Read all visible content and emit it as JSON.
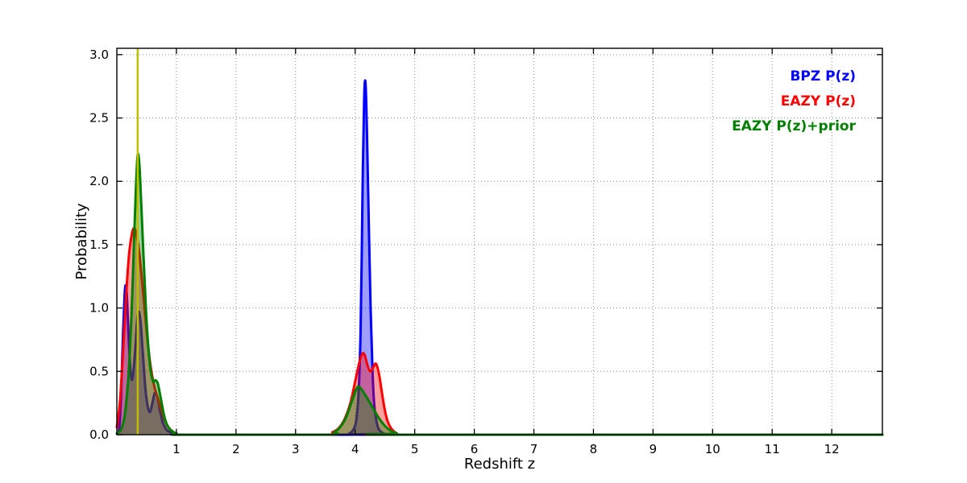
{
  "chart_data": {
    "type": "line",
    "title": "",
    "xlabel": "Redshift z",
    "ylabel": "Probability",
    "xlim": [
      0,
      12.85
    ],
    "ylim": [
      0,
      3.05
    ],
    "xticks": [
      1,
      2,
      3,
      4,
      5,
      6,
      7,
      8,
      9,
      10,
      11,
      12
    ],
    "yticks": [
      0.0,
      0.5,
      1.0,
      1.5,
      2.0,
      2.5,
      3.0
    ],
    "grid": true,
    "legend_position": "top-right",
    "vline": {
      "x": 0.35,
      "color": "#bfbf00"
    },
    "fill_opacity": 0.38,
    "series": [
      {
        "id": "bpz",
        "name": "BPZ P(z)",
        "color": "#0000ff",
        "points": [
          [
            0.0,
            0.01
          ],
          [
            0.04,
            0.05
          ],
          [
            0.07,
            0.3
          ],
          [
            0.1,
            0.75
          ],
          [
            0.13,
            1.1
          ],
          [
            0.15,
            1.18
          ],
          [
            0.17,
            1.08
          ],
          [
            0.2,
            0.75
          ],
          [
            0.23,
            0.5
          ],
          [
            0.26,
            0.44
          ],
          [
            0.3,
            0.62
          ],
          [
            0.34,
            0.9
          ],
          [
            0.37,
            0.97
          ],
          [
            0.4,
            0.88
          ],
          [
            0.44,
            0.62
          ],
          [
            0.48,
            0.36
          ],
          [
            0.52,
            0.22
          ],
          [
            0.56,
            0.18
          ],
          [
            0.6,
            0.26
          ],
          [
            0.64,
            0.33
          ],
          [
            0.68,
            0.3
          ],
          [
            0.72,
            0.2
          ],
          [
            0.77,
            0.1
          ],
          [
            0.83,
            0.04
          ],
          [
            0.9,
            0.02
          ],
          [
            1.0,
            0.01
          ],
          [
            1.15,
            0.0
          ],
          [
            3.8,
            0.0
          ],
          [
            3.9,
            0.01
          ],
          [
            3.97,
            0.04
          ],
          [
            4.02,
            0.12
          ],
          [
            4.06,
            0.35
          ],
          [
            4.09,
            0.8
          ],
          [
            4.11,
            1.4
          ],
          [
            4.13,
            2.1
          ],
          [
            4.15,
            2.62
          ],
          [
            4.165,
            2.79
          ],
          [
            4.18,
            2.72
          ],
          [
            4.2,
            2.35
          ],
          [
            4.23,
            1.65
          ],
          [
            4.26,
            1.0
          ],
          [
            4.29,
            0.52
          ],
          [
            4.32,
            0.24
          ],
          [
            4.36,
            0.1
          ],
          [
            4.4,
            0.04
          ],
          [
            4.48,
            0.01
          ],
          [
            4.6,
            0.0
          ],
          [
            12.85,
            0.0
          ]
        ]
      },
      {
        "id": "eazy",
        "name": "EAZY P(z)",
        "color": "#ff0000",
        "points": [
          [
            0.0,
            0.06
          ],
          [
            0.05,
            0.25
          ],
          [
            0.1,
            0.62
          ],
          [
            0.15,
            1.05
          ],
          [
            0.2,
            1.4
          ],
          [
            0.25,
            1.58
          ],
          [
            0.29,
            1.63
          ],
          [
            0.33,
            1.58
          ],
          [
            0.38,
            1.42
          ],
          [
            0.43,
            1.18
          ],
          [
            0.48,
            0.92
          ],
          [
            0.53,
            0.68
          ],
          [
            0.58,
            0.5
          ],
          [
            0.63,
            0.38
          ],
          [
            0.68,
            0.3
          ],
          [
            0.73,
            0.22
          ],
          [
            0.78,
            0.15
          ],
          [
            0.84,
            0.08
          ],
          [
            0.9,
            0.04
          ],
          [
            1.0,
            0.01
          ],
          [
            1.15,
            0.0
          ],
          [
            3.5,
            0.0
          ],
          [
            3.62,
            0.02
          ],
          [
            3.72,
            0.05
          ],
          [
            3.82,
            0.12
          ],
          [
            3.92,
            0.25
          ],
          [
            4.0,
            0.42
          ],
          [
            4.07,
            0.57
          ],
          [
            4.12,
            0.64
          ],
          [
            4.16,
            0.63
          ],
          [
            4.2,
            0.56
          ],
          [
            4.25,
            0.5
          ],
          [
            4.3,
            0.53
          ],
          [
            4.35,
            0.56
          ],
          [
            4.4,
            0.48
          ],
          [
            4.45,
            0.33
          ],
          [
            4.5,
            0.19
          ],
          [
            4.55,
            0.1
          ],
          [
            4.62,
            0.04
          ],
          [
            4.7,
            0.01
          ],
          [
            4.8,
            0.0
          ],
          [
            12.85,
            0.0
          ]
        ]
      },
      {
        "id": "eazy-prior",
        "name": "EAZY P(z)+prior",
        "color": "#008000",
        "points": [
          [
            0.0,
            0.01
          ],
          [
            0.08,
            0.05
          ],
          [
            0.14,
            0.18
          ],
          [
            0.2,
            0.5
          ],
          [
            0.25,
            1.0
          ],
          [
            0.29,
            1.55
          ],
          [
            0.32,
            1.95
          ],
          [
            0.35,
            2.21
          ],
          [
            0.38,
            2.12
          ],
          [
            0.41,
            1.82
          ],
          [
            0.45,
            1.38
          ],
          [
            0.49,
            0.98
          ],
          [
            0.53,
            0.68
          ],
          [
            0.57,
            0.5
          ],
          [
            0.61,
            0.42
          ],
          [
            0.65,
            0.43
          ],
          [
            0.69,
            0.4
          ],
          [
            0.74,
            0.28
          ],
          [
            0.79,
            0.16
          ],
          [
            0.84,
            0.08
          ],
          [
            0.9,
            0.04
          ],
          [
            1.0,
            0.01
          ],
          [
            1.15,
            0.0
          ],
          [
            3.5,
            0.0
          ],
          [
            3.65,
            0.02
          ],
          [
            3.75,
            0.06
          ],
          [
            3.85,
            0.14
          ],
          [
            3.95,
            0.27
          ],
          [
            4.02,
            0.36
          ],
          [
            4.06,
            0.38
          ],
          [
            4.12,
            0.35
          ],
          [
            4.2,
            0.29
          ],
          [
            4.3,
            0.21
          ],
          [
            4.4,
            0.13
          ],
          [
            4.5,
            0.07
          ],
          [
            4.6,
            0.03
          ],
          [
            4.7,
            0.01
          ],
          [
            4.82,
            0.0
          ],
          [
            12.85,
            0.0
          ]
        ]
      }
    ]
  }
}
